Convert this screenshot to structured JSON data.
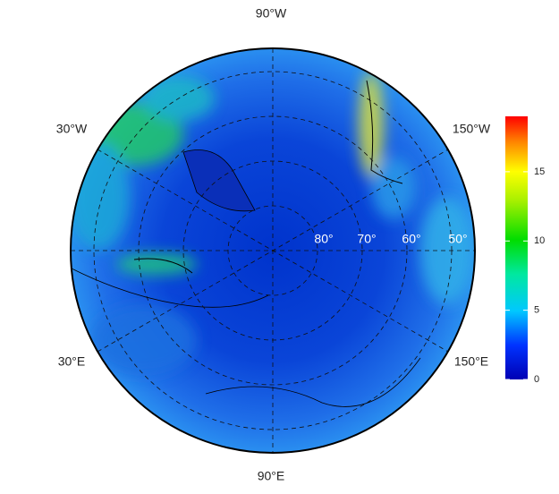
{
  "map": {
    "longitude_labels": [
      "90°W",
      "30°W",
      "150°W",
      "30°E",
      "150°E",
      "90°E"
    ],
    "latitude_labels": [
      "80°",
      "70°",
      "60°",
      "50°"
    ]
  },
  "colorbar": {
    "range": [
      0,
      19
    ],
    "ticks": [
      0,
      5,
      10,
      15
    ]
  }
}
